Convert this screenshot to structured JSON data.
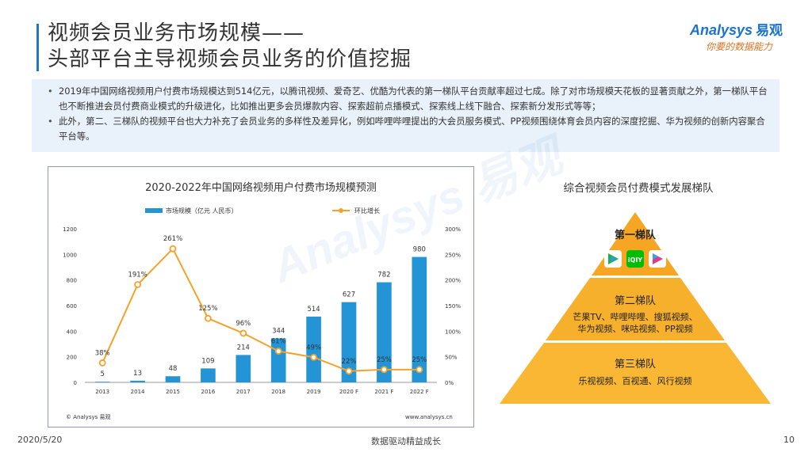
{
  "title": {
    "line1": "视频会员业务市场规模——",
    "line2": "头部平台主导视频会员业务的价值挖掘"
  },
  "logo": {
    "brand": "nalysys",
    "brand_prefix": "A",
    "brand_cn": "易观",
    "slogan": "你要的数据能力"
  },
  "summary": {
    "bullets": [
      "2019年中国网络视频用户付费市场规模达到514亿元，以腾讯视频、爱奇艺、优酷为代表的第一梯队平台贡献率超过七成。除了对市场规模天花板的显著贡献之外，第一梯队平台也不断推进会员付费商业模式的升级进化，比如推出更多会员爆款内容、探索超前点播模式、探索线上线下融合、探索新分发形式等等；",
      "此外，第二、三梯队的视频平台也大力补充了会员业务的多样性及差异化，例如哔哩哔哩提出的大会员服务模式、PP视频围绕体育会员内容的深度挖掘、华为视频的创新内容聚合平台等。"
    ]
  },
  "chart_data": {
    "type": "bar",
    "title": "2020-2022年中国网络视频用户付费市场规模预测",
    "categories": [
      "2013",
      "2014",
      "2015",
      "2016",
      "2017",
      "2018",
      "2019",
      "2020 F",
      "2021 F",
      "2022 F"
    ],
    "series": [
      {
        "name": "市场规模（亿元 人民币）",
        "type": "bar",
        "axis": "left",
        "color": "#2394d6",
        "values": [
          5,
          13,
          48,
          109,
          214,
          344,
          514,
          627,
          782,
          980
        ],
        "labels": [
          "5",
          "13",
          "48",
          "109",
          "214",
          "344",
          "514",
          "627",
          "782",
          "980"
        ]
      },
      {
        "name": "环比增长",
        "type": "line",
        "axis": "right",
        "color": "#f4a22a",
        "values": [
          38,
          191,
          261,
          125,
          96,
          61,
          49,
          22,
          25,
          25
        ],
        "labels": [
          "38%",
          "191%",
          "261%",
          "125%",
          "96%",
          "61%",
          "49%",
          "22%",
          "25%",
          "25%"
        ]
      }
    ],
    "ylim": [
      0,
      1200
    ],
    "yticks": [
      "0",
      "200",
      "400",
      "600",
      "800",
      "1000",
      "1200"
    ],
    "y2lim": [
      0,
      300
    ],
    "y2ticks": [
      "0%",
      "50%",
      "100%",
      "150%",
      "200%",
      "250%",
      "300%"
    ],
    "source": "© Analysys 易观",
    "site": "www.analysys.cn",
    "legend": "top-center"
  },
  "pyramid": {
    "title": "综合视频会员付费模式发展梯队",
    "tier1": {
      "label": "第一梯队"
    },
    "tier2": {
      "label": "第二梯队",
      "line1": "芒果TV、哔哩哔哩、搜狐视频、",
      "line2": "华为视频、咪咕视频、PP视频"
    },
    "tier3": {
      "label": "第三梯队",
      "line1": "乐视视频、百视通、风行视频"
    },
    "app_icons": [
      "tencent-video-icon",
      "iqiyi-icon",
      "youku-icon"
    ],
    "colors": {
      "top": "#f6a623",
      "mid": "#f7b02c",
      "bottom": "#f9b733",
      "divider": "#ffffff"
    }
  },
  "footer": {
    "date": "2020/5/20",
    "center": "数据驱动精益成长",
    "page": "10"
  }
}
